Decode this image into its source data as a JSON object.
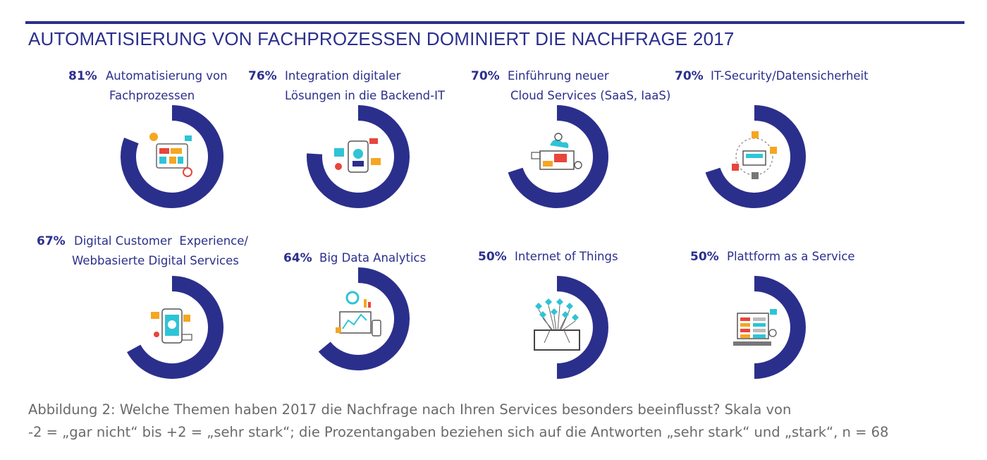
{
  "title": "AUTOMATISIERUNG VON FACHPROZESSEN DOMINIERT DIE NACHFRAGE 2017",
  "chart_data": {
    "type": "donut",
    "items": [
      {
        "value": 81,
        "label_pct": "81%",
        "label_lines": [
          "Automatisierung von",
          "Fachprozessen"
        ],
        "icon": "process-automation-icon"
      },
      {
        "value": 76,
        "label_pct": "76%",
        "label_lines": [
          "Integration digitaler",
          "Lösungen in die Backend-IT"
        ],
        "icon": "backend-integration-icon"
      },
      {
        "value": 70,
        "label_pct": "70%",
        "label_lines": [
          "Einführung neuer",
          "Cloud Services (SaaS, IaaS)"
        ],
        "icon": "cloud-services-icon"
      },
      {
        "value": 70,
        "label_pct": "70%",
        "label_lines": [
          "IT-Security/Datensicherheit"
        ],
        "icon": "security-icon"
      },
      {
        "value": 67,
        "label_pct": "67%",
        "label_lines": [
          "Digital Customer  Experience/",
          "Webbasierte Digital Services"
        ],
        "icon": "mobile-services-icon"
      },
      {
        "value": 64,
        "label_pct": "64%",
        "label_lines": [
          "Big Data Analytics"
        ],
        "icon": "analytics-icon"
      },
      {
        "value": 50,
        "label_pct": "50%",
        "label_lines": [
          "Internet of Things"
        ],
        "icon": "iot-icon"
      },
      {
        "value": 50,
        "label_pct": "50%",
        "label_lines": [
          "Plattform as a Service"
        ],
        "icon": "platform-icon"
      }
    ]
  },
  "colors": {
    "ring": "#2b2f8c",
    "label": "#2b2f8c",
    "caption": "#6a6a6a",
    "accent_orange": "#f5a623",
    "accent_cyan": "#2ec4d6",
    "accent_red": "#e8453c"
  },
  "caption": {
    "line1": "Abbildung 2: Welche Themen haben 2017 die Nachfrage nach Ihren Services besonders beeinflusst? Skala von",
    "line2": "-2 = „gar nicht“ bis +2 = „sehr stark“; die Prozentangaben beziehen sich auf die Antworten „sehr stark“ und „stark“, n = 68"
  }
}
